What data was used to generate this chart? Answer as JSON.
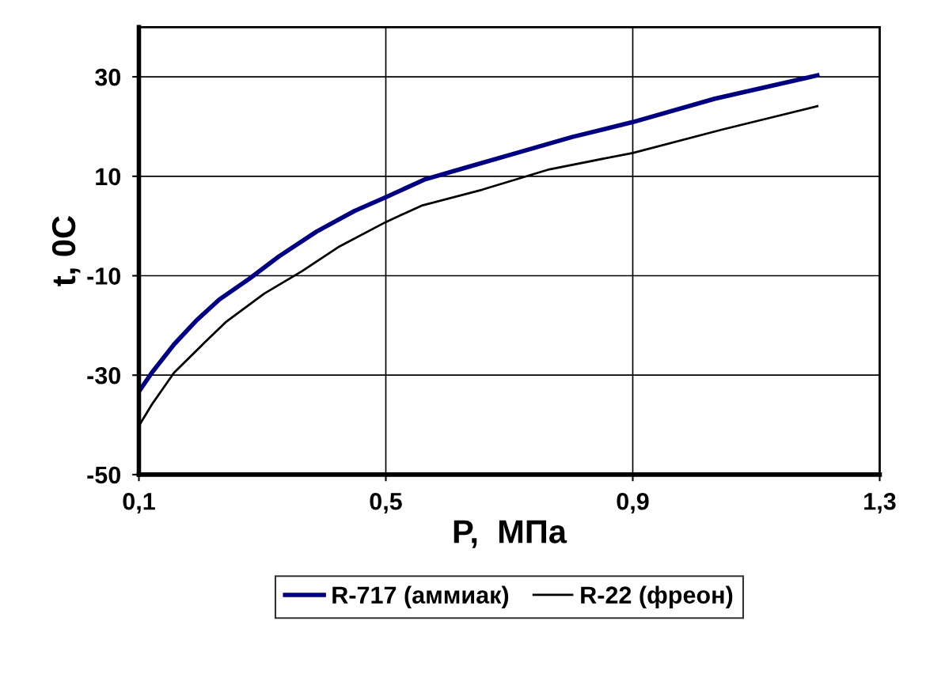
{
  "chart_data": {
    "type": "line",
    "xlabel": "P,  МПа",
    "ylabel": "t, 0C",
    "xlim": [
      0.1,
      1.3
    ],
    "ylim": [
      -50,
      40
    ],
    "xticks": [
      {
        "value": 0.1,
        "label": "0,1"
      },
      {
        "value": 0.5,
        "label": "0,5"
      },
      {
        "value": 0.9,
        "label": "0,9"
      },
      {
        "value": 1.3,
        "label": "1,3"
      }
    ],
    "yticks": [
      -50,
      -30,
      -10,
      10,
      30
    ],
    "grid": true,
    "legend": "bottom",
    "marker": "none",
    "line_style": "solid",
    "series": [
      {
        "name": "R-717 (аммиак)",
        "color": "#000080",
        "x": [
          0.1,
          0.121,
          0.157,
          0.194,
          0.23,
          0.279,
          0.327,
          0.388,
          0.449,
          0.5,
          0.564,
          0.631,
          0.704,
          0.802,
          0.9,
          1.033,
          1.199
        ],
        "values": [
          -33.3,
          -29.5,
          -23.8,
          -18.9,
          -14.8,
          -10.6,
          -6.1,
          -1.1,
          3.0,
          5.8,
          9.4,
          11.8,
          14.4,
          17.9,
          20.9,
          25.6,
          30.3
        ]
      },
      {
        "name": "R-22 (фреон)",
        "color": "#000000",
        "x": [
          0.1,
          0.121,
          0.157,
          0.206,
          0.242,
          0.303,
          0.364,
          0.425,
          0.5,
          0.558,
          0.656,
          0.765,
          0.9,
          1.045,
          1.199
        ],
        "values": [
          -40.2,
          -35.9,
          -29.5,
          -23.5,
          -19.2,
          -13.6,
          -9.1,
          -4.1,
          0.8,
          4.1,
          7.3,
          11.4,
          14.7,
          19.4,
          24.1
        ]
      }
    ]
  }
}
